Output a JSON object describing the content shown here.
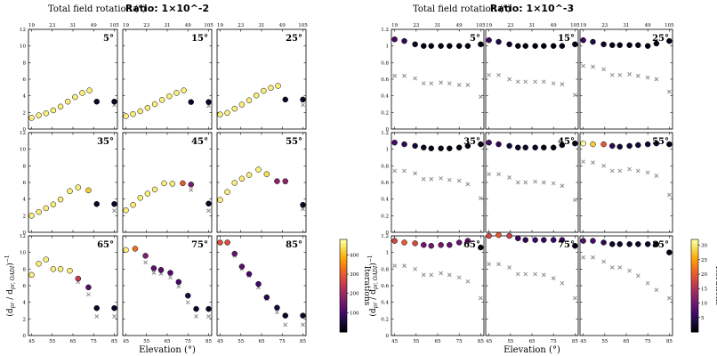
{
  "figure": {
    "toplabel": "Total field rotation (°)",
    "xlabel": "Elevation (°)",
    "ylabel": "(d_pr / d_pr, OADI)^-1",
    "cbar_label": "Iterations",
    "colors": {
      "marker_edge": "#000000",
      "cross": "#8a8a8a"
    }
  },
  "chart_data": [
    {
      "type": "scatter",
      "title": "Ratio: 1×10^-2",
      "elevation_ticks": [
        45,
        55,
        65,
        75,
        85
      ],
      "rotation_ticks": [
        19,
        23,
        31,
        49,
        105
      ],
      "ylim": [
        0,
        12
      ],
      "yticks": [
        0,
        2,
        4,
        6,
        8,
        10,
        12
      ],
      "colorbar": {
        "ticks": [
          100,
          200,
          300,
          400
        ],
        "range": [
          0,
          480
        ],
        "colormap": "inferno"
      },
      "panels": [
        {
          "label": "5°",
          "elevation": [
            45,
            48.5,
            52,
            55.5,
            59,
            62.5,
            66,
            69.5,
            73,
            76.5,
            85
          ],
          "ratio": [
            1.35,
            1.65,
            1.9,
            2.25,
            2.7,
            3.3,
            3.85,
            4.35,
            4.65,
            3.3,
            3.3
          ],
          "iterations": [
            460,
            460,
            460,
            460,
            460,
            460,
            460,
            460,
            460,
            30,
            30
          ],
          "cross": [
            null,
            null,
            null,
            null,
            null,
            null,
            null,
            null,
            null,
            null,
            2.9
          ]
        },
        {
          "label": "15°",
          "elevation": [
            45,
            48.5,
            52,
            55.5,
            59,
            62.5,
            66,
            69.5,
            73,
            76.5,
            85
          ],
          "ratio": [
            1.55,
            1.8,
            2.15,
            2.55,
            3.0,
            3.5,
            3.95,
            4.35,
            4.65,
            3.25,
            3.25
          ],
          "iterations": [
            460,
            460,
            460,
            460,
            460,
            460,
            460,
            460,
            460,
            30,
            30
          ],
          "cross": [
            null,
            null,
            null,
            null,
            null,
            null,
            null,
            null,
            null,
            null,
            2.8
          ]
        },
        {
          "label": "25°",
          "elevation": [
            45,
            48.5,
            52,
            55.5,
            59,
            62.5,
            66,
            69.5,
            73,
            76.5,
            85
          ],
          "ratio": [
            1.75,
            1.95,
            2.45,
            2.95,
            3.45,
            4.05,
            4.6,
            4.95,
            5.2,
            3.55,
            3.55
          ],
          "iterations": [
            460,
            460,
            460,
            460,
            460,
            460,
            460,
            460,
            460,
            30,
            30
          ],
          "cross": [
            null,
            null,
            null,
            null,
            null,
            null,
            null,
            null,
            null,
            null,
            2.9
          ]
        },
        {
          "label": "35°",
          "elevation": [
            45,
            48.5,
            52,
            55.5,
            59,
            63.5,
            67.5,
            72.5,
            76.5,
            85
          ],
          "ratio": [
            2.0,
            2.45,
            2.9,
            3.35,
            3.95,
            4.95,
            5.4,
            5.05,
            3.4,
            3.4
          ],
          "iterations": [
            460,
            460,
            460,
            460,
            460,
            460,
            460,
            420,
            30,
            30
          ],
          "cross": [
            null,
            null,
            null,
            null,
            null,
            null,
            null,
            null,
            null,
            2.6
          ]
        },
        {
          "label": "45°",
          "elevation": [
            45,
            48.5,
            52,
            55.5,
            59,
            63.5,
            67.5,
            72.5,
            76.5,
            85
          ],
          "ratio": [
            2.65,
            3.3,
            4.15,
            4.65,
            5.15,
            5.9,
            5.85,
            5.9,
            5.75,
            3.45
          ],
          "iterations": [
            460,
            460,
            460,
            460,
            460,
            460,
            460,
            300,
            160,
            30
          ],
          "cross": [
            null,
            null,
            null,
            null,
            null,
            null,
            null,
            null,
            5.1,
            2.6
          ]
        },
        {
          "label": "55°",
          "elevation": [
            45,
            48.5,
            52,
            55.5,
            59,
            63.5,
            67.5,
            72.5,
            76.5,
            85
          ],
          "ratio": [
            3.9,
            4.85,
            5.95,
            6.45,
            6.9,
            7.55,
            7.0,
            6.15,
            6.15,
            3.3
          ],
          "iterations": [
            460,
            460,
            460,
            460,
            460,
            460,
            440,
            180,
            180,
            30
          ],
          "cross": [
            null,
            null,
            null,
            null,
            null,
            null,
            null,
            null,
            6.0,
            2.8
          ]
        },
        {
          "label": "65°",
          "elevation": [
            45,
            48.5,
            52,
            55.5,
            59,
            63.5,
            67.5,
            72.5,
            76.5,
            85
          ],
          "ratio": [
            7.3,
            8.65,
            9.15,
            8.0,
            8.0,
            7.8,
            6.85,
            5.8,
            3.3,
            3.3
          ],
          "iterations": [
            460,
            460,
            460,
            460,
            460,
            460,
            250,
            120,
            30,
            30
          ],
          "cross": [
            null,
            null,
            null,
            null,
            null,
            null,
            6.45,
            4.95,
            2.3,
            2.3
          ]
        },
        {
          "label": "75°",
          "elevation": [
            45,
            49.5,
            54.5,
            58.5,
            62,
            66.5,
            70.5,
            75,
            79,
            85
          ],
          "ratio": [
            10.3,
            10.45,
            9.6,
            8.1,
            7.9,
            7.55,
            6.45,
            4.8,
            3.2,
            3.2
          ],
          "iterations": [
            460,
            330,
            170,
            120,
            120,
            110,
            100,
            60,
            30,
            30
          ],
          "cross": [
            null,
            null,
            8.8,
            7.55,
            7.45,
            7.0,
            5.9,
            4.0,
            2.3,
            2.3
          ]
        },
        {
          "label": "85°",
          "elevation": [
            45,
            48.5,
            52,
            55.5,
            59,
            63.5,
            67.5,
            72.5,
            76.5,
            85
          ],
          "ratio": [
            11.2,
            11.2,
            9.85,
            8.3,
            7.4,
            6.2,
            4.6,
            3.35,
            2.4,
            2.4
          ],
          "iterations": [
            280,
            280,
            140,
            120,
            100,
            90,
            70,
            50,
            30,
            30
          ],
          "cross": [
            null,
            null,
            9.6,
            8.0,
            7.2,
            5.8,
            4.4,
            2.8,
            1.3,
            1.3
          ]
        }
      ]
    },
    {
      "type": "scatter",
      "title": "Ratio: 1×10^-3",
      "elevation_ticks": [
        45,
        55,
        65,
        75,
        85
      ],
      "rotation_ticks": [
        19,
        23,
        31,
        49,
        105
      ],
      "ylim": [
        0,
        1.2
      ],
      "yticks": [
        0.0,
        0.2,
        0.4,
        0.6,
        0.8,
        1.0,
        1.2
      ],
      "colorbar": {
        "ticks": [
          5,
          10,
          15,
          20,
          25,
          30
        ],
        "range": [
          0,
          32
        ],
        "colormap": "inferno"
      },
      "panels": [
        {
          "label": "5°",
          "elevation": [
            45,
            49.5,
            54.5,
            58.5,
            62,
            66.5,
            70.5,
            75,
            79,
            85
          ],
          "ratio": [
            1.08,
            1.06,
            1.02,
            1.0,
            1.0,
            1.0,
            1.0,
            1.0,
            1.0,
            1.02
          ],
          "iterations": [
            7,
            5,
            2,
            1,
            1,
            1,
            1,
            1,
            1,
            1
          ],
          "cross": [
            0.64,
            0.64,
            0.61,
            0.55,
            0.55,
            0.56,
            0.55,
            0.53,
            0.53,
            0.39
          ]
        },
        {
          "label": "15°",
          "elevation": [
            45,
            49.5,
            54.5,
            58.5,
            62,
            66.5,
            70.5,
            75,
            79,
            85
          ],
          "ratio": [
            1.07,
            1.05,
            1.02,
            1.0,
            1.0,
            1.0,
            1.0,
            1.0,
            1.0,
            1.02
          ],
          "iterations": [
            6,
            4,
            2,
            1,
            1,
            1,
            1,
            1,
            1,
            1
          ],
          "cross": [
            0.65,
            0.65,
            0.6,
            0.57,
            0.57,
            0.57,
            0.57,
            0.55,
            0.54,
            0.41
          ]
        },
        {
          "label": "25°",
          "elevation": [
            45,
            49.5,
            54.5,
            58.5,
            62,
            66.5,
            70.5,
            75,
            79,
            85
          ],
          "ratio": [
            1.07,
            1.05,
            1.02,
            1.01,
            1.01,
            1.01,
            1.01,
            1.0,
            1.03,
            1.06
          ],
          "iterations": [
            6,
            4,
            2,
            1,
            1,
            1,
            1,
            1,
            1,
            1
          ],
          "cross": [
            0.76,
            0.75,
            0.72,
            0.65,
            0.65,
            0.66,
            0.64,
            0.62,
            0.6,
            0.45
          ]
        },
        {
          "label": "35°",
          "elevation": [
            45,
            49.5,
            54.5,
            58.5,
            62,
            66.5,
            70.5,
            75,
            79,
            85
          ],
          "ratio": [
            1.08,
            1.06,
            1.04,
            1.02,
            1.01,
            1.01,
            1.01,
            1.02,
            1.04,
            1.06
          ],
          "iterations": [
            7,
            5,
            3,
            2,
            1,
            1,
            1,
            1,
            1,
            1
          ],
          "cross": [
            0.74,
            0.74,
            0.71,
            0.64,
            0.64,
            0.65,
            0.63,
            0.62,
            0.58,
            0.41
          ]
        },
        {
          "label": "45°",
          "elevation": [
            45,
            49.5,
            54.5,
            58.5,
            62,
            66.5,
            70.5,
            75,
            79,
            85
          ],
          "ratio": [
            1.08,
            1.06,
            1.04,
            1.02,
            1.02,
            1.02,
            1.02,
            1.02,
            1.05,
            1.07
          ],
          "iterations": [
            7,
            5,
            3,
            2,
            2,
            2,
            1,
            1,
            1,
            1
          ],
          "cross": [
            0.7,
            0.7,
            0.66,
            0.6,
            0.6,
            0.61,
            0.6,
            0.59,
            0.56,
            0.39
          ]
        },
        {
          "label": "55°",
          "elevation": [
            45,
            49.5,
            54.5,
            58.5,
            62,
            66.5,
            70.5,
            75,
            79,
            85
          ],
          "ratio": [
            1.07,
            1.06,
            1.06,
            1.04,
            1.03,
            1.04,
            1.05,
            1.06,
            1.07,
            1.06
          ],
          "iterations": [
            32,
            28,
            20,
            5,
            3,
            3,
            3,
            3,
            3,
            1
          ],
          "cross": [
            0.85,
            0.84,
            0.8,
            0.74,
            0.74,
            0.76,
            0.74,
            0.72,
            0.68,
            0.45
          ]
        },
        {
          "label": "65°",
          "elevation": [
            45,
            49.5,
            54.5,
            58.5,
            62,
            66.5,
            70.5,
            75,
            79,
            85
          ],
          "ratio": [
            1.14,
            1.12,
            1.11,
            1.09,
            1.08,
            1.09,
            1.09,
            1.12,
            1.14,
            1.06
          ],
          "iterations": [
            18,
            20,
            18,
            10,
            10,
            10,
            9,
            9,
            9,
            1
          ],
          "cross": [
            0.84,
            0.84,
            0.8,
            0.73,
            0.73,
            0.75,
            0.73,
            0.7,
            0.65,
            0.45
          ]
        },
        {
          "label": "75°",
          "elevation": [
            45,
            49.5,
            54.5,
            58.5,
            62,
            66.5,
            70.5,
            75,
            79,
            85
          ],
          "ratio": [
            1.2,
            1.21,
            1.2,
            1.17,
            1.15,
            1.15,
            1.15,
            1.15,
            1.15,
            1.08
          ],
          "iterations": [
            18,
            20,
            17,
            6,
            5,
            6,
            6,
            6,
            6,
            1
          ],
          "cross": [
            0.86,
            0.86,
            0.82,
            0.74,
            0.74,
            0.74,
            0.73,
            0.69,
            0.63,
            0.45
          ]
        },
        {
          "label": "85°",
          "elevation": [
            45,
            49.5,
            54.5,
            58.5,
            62,
            66.5,
            70.5,
            75,
            79,
            85
          ],
          "ratio": [
            1.14,
            1.14,
            1.12,
            1.1,
            1.1,
            1.1,
            1.1,
            1.1,
            1.1,
            1.0
          ],
          "iterations": [
            8,
            7,
            5,
            2,
            2,
            2,
            2,
            2,
            2,
            1
          ],
          "cross": [
            0.94,
            0.94,
            0.89,
            0.82,
            0.82,
            0.78,
            0.72,
            0.63,
            0.55,
            0.45
          ]
        }
      ]
    }
  ]
}
